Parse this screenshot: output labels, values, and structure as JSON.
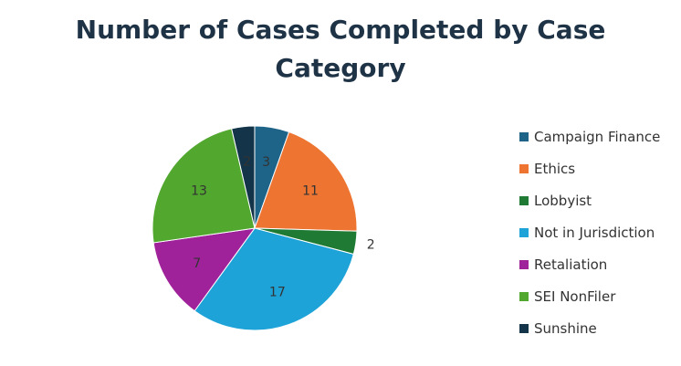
{
  "chart_data": {
    "type": "pie",
    "title_lines": [
      "Number of Cases Completed by Case",
      "Category"
    ],
    "slices": [
      {
        "label": "Campaign Finance",
        "value": 3,
        "color": "#1e6388"
      },
      {
        "label": "Ethics",
        "value": 11,
        "color": "#ee7431"
      },
      {
        "label": "Lobbyist",
        "value": 2,
        "color": "#1f7a34"
      },
      {
        "label": "Not in Jurisdiction",
        "value": 17,
        "color": "#1ea3d8"
      },
      {
        "label": "Retaliation",
        "value": 7,
        "color": "#a0229a"
      },
      {
        "label": "SEI NonFiler",
        "value": 13,
        "color": "#52a72f"
      },
      {
        "label": "Sunshine",
        "value": 2,
        "color": "#133449"
      }
    ],
    "legend_position": "right",
    "data_labels": true
  }
}
